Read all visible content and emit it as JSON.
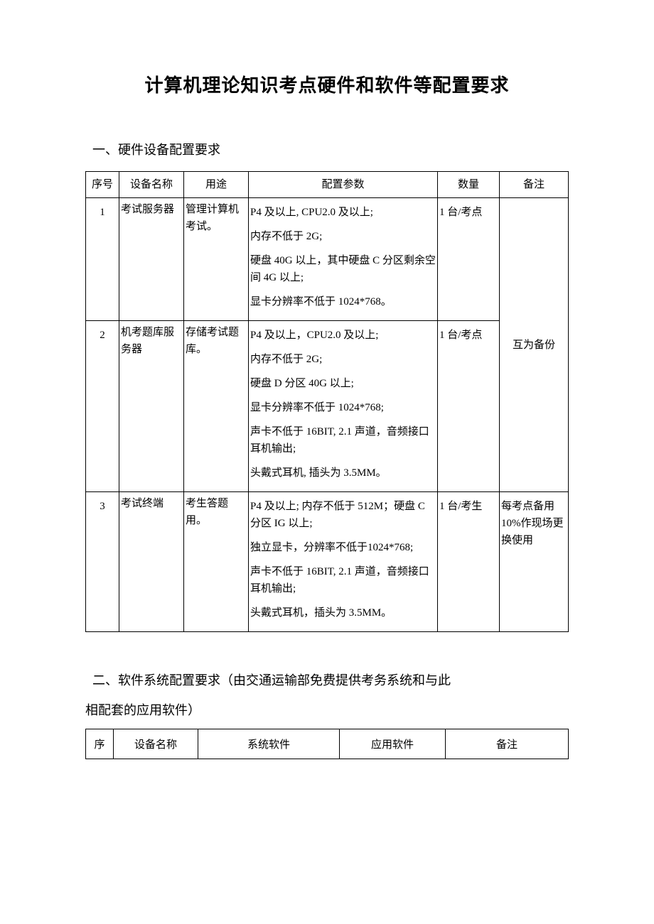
{
  "title": "计算机理论知识考点硬件和软件等配置要求",
  "section1": {
    "heading": "一、硬件设备配置要求",
    "columns": {
      "seq": "序号",
      "name": "设备名称",
      "use": "用途",
      "spec": "配置参数",
      "qty": "数量",
      "note": "备注"
    },
    "rows": [
      {
        "seq": "1",
        "name": "考试服务器",
        "use": "管理计算机考试。",
        "spec": [
          "P4 及以上, CPU2.0 及以上;",
          "内存不低于 2G;",
          "硬盘 40G 以上，其中硬盘 C 分区剩余空间 4G 以上;",
          "显卡分辨率不低于 1024*768。"
        ],
        "qty": "1 台/考点"
      },
      {
        "seq": "2",
        "name": "机考题库服务器",
        "use": "存储考试题库。",
        "spec": [
          "P4 及以上，CPU2.0 及以上;",
          "内存不低于 2G;",
          "硬盘 D 分区 40G 以上;",
          "显卡分辨率不低于 1024*768;",
          "声卡不低于 16BIT, 2.1 声道，音频接口耳机输出;",
          "头戴式耳机, 插头为 3.5MM。"
        ],
        "qty": "1 台/考点"
      },
      {
        "seq": "3",
        "name": "考试终端",
        "use": "考生答题用。",
        "spec": [
          "P4 及以上; 内存不低于 512M；硬盘 C 分区 IG 以上;",
          "独立显卡，分辨率不低于1024*768;",
          "声卡不低于 16BIT, 2.1 声道，音频接口耳机输出;",
          "头戴式耳机，插头为 3.5MM。"
        ],
        "qty": "1 台/考生",
        "note": "每考点备用10%作现场更换使用"
      }
    ],
    "merged_note_rows_1_2": "互为备份"
  },
  "section2": {
    "heading_line1": "二、软件系统配置要求（由交通运输部免费提供考务系统和与此",
    "heading_line2": "相配套的应用软件）",
    "columns": {
      "seq": "序",
      "name": "设备名称",
      "sys": "系统软件",
      "app": "应用软件",
      "note": "备注"
    }
  }
}
